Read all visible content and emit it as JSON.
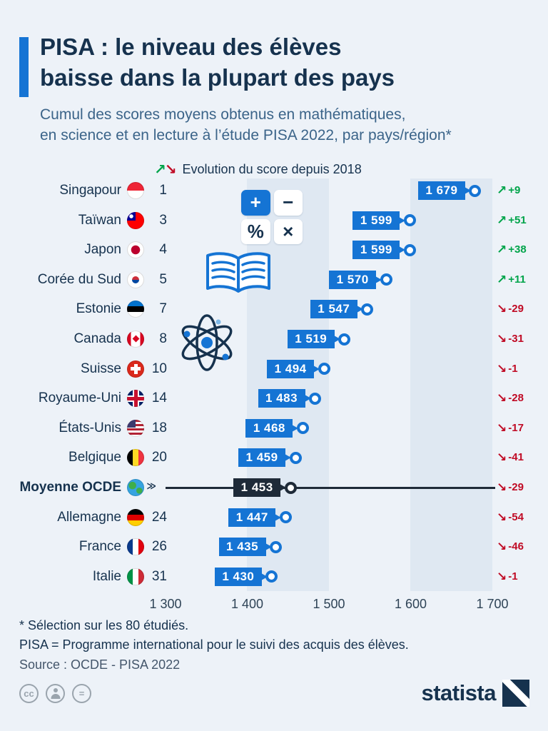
{
  "header": {
    "title_line1": "PISA : le niveau des élèves",
    "title_line2": "baisse dans la plupart des pays",
    "subtitle_line1": "Cumul des scores moyens obtenus en mathématiques,",
    "subtitle_line2": "en science et en lecture à l’étude PISA 2022, par pays/région*"
  },
  "legend": {
    "up_icon": "↗",
    "down_icon": "↘",
    "label": "Evolution du score depuis 2018"
  },
  "chart_data": {
    "type": "lollipop-bar",
    "title": "Cumul des scores moyens PISA 2022 (mathématiques + science + lecture)",
    "xlim": [
      1300,
      1700
    ],
    "x_ticks": [
      "1 300",
      "1 400",
      "1 500",
      "1 600",
      "1 700"
    ],
    "grid": "vertical-bands",
    "legend_position": "top",
    "rows": [
      {
        "country": "Singapour",
        "flag": "singapore",
        "rank": "1",
        "value": 1679,
        "label": "1 679",
        "change": "+9",
        "dir": "up",
        "emphasis": false
      },
      {
        "country": "Taïwan",
        "flag": "taiwan",
        "rank": "3",
        "value": 1599,
        "label": "1 599",
        "change": "+51",
        "dir": "up",
        "emphasis": false
      },
      {
        "country": "Japon",
        "flag": "japan",
        "rank": "4",
        "value": 1599,
        "label": "1 599",
        "change": "+38",
        "dir": "up",
        "emphasis": false
      },
      {
        "country": "Corée du Sud",
        "flag": "korea",
        "rank": "5",
        "value": 1570,
        "label": "1 570",
        "change": "+11",
        "dir": "up",
        "emphasis": false
      },
      {
        "country": "Estonie",
        "flag": "estonia",
        "rank": "7",
        "value": 1547,
        "label": "1 547",
        "change": "-29",
        "dir": "down",
        "emphasis": false
      },
      {
        "country": "Canada",
        "flag": "canada",
        "rank": "8",
        "value": 1519,
        "label": "1 519",
        "change": "-31",
        "dir": "down",
        "emphasis": false
      },
      {
        "country": "Suisse",
        "flag": "switzerland",
        "rank": "10",
        "value": 1494,
        "label": "1 494",
        "change": "-1",
        "dir": "down",
        "emphasis": false
      },
      {
        "country": "Royaume-Uni",
        "flag": "uk",
        "rank": "14",
        "value": 1483,
        "label": "1 483",
        "change": "-28",
        "dir": "down",
        "emphasis": false
      },
      {
        "country": "États-Unis",
        "flag": "usa",
        "rank": "18",
        "value": 1468,
        "label": "1 468",
        "change": "-17",
        "dir": "down",
        "emphasis": false
      },
      {
        "country": "Belgique",
        "flag": "belgium",
        "rank": "20",
        "value": 1459,
        "label": "1 459",
        "change": "-41",
        "dir": "down",
        "emphasis": false
      },
      {
        "country": "Moyenne OCDE",
        "flag": "globe",
        "rank": "",
        "value": 1453,
        "label": "1 453",
        "change": "-29",
        "dir": "down",
        "emphasis": true
      },
      {
        "country": "Allemagne",
        "flag": "germany",
        "rank": "24",
        "value": 1447,
        "label": "1 447",
        "change": "-54",
        "dir": "down",
        "emphasis": false
      },
      {
        "country": "France",
        "flag": "france",
        "rank": "26",
        "value": 1435,
        "label": "1 435",
        "change": "-46",
        "dir": "down",
        "emphasis": false
      },
      {
        "country": "Italie",
        "flag": "italy",
        "rank": "31",
        "value": 1430,
        "label": "1 430",
        "change": "-1",
        "dir": "down",
        "emphasis": false
      }
    ]
  },
  "decor": {
    "calculator_keys": [
      "+",
      "−",
      "%",
      "×"
    ]
  },
  "footnotes": {
    "note1": "* Sélection sur les 80 étudiés.",
    "note2": "PISA = Programme international pour le suivi des acquis des élèves.",
    "source": "Source : OCDE - PISA 2022"
  },
  "footer": {
    "cc_label": "cc",
    "nd_label": "=",
    "brand": "statista"
  },
  "colors": {
    "background": "#edf2f8",
    "accent_blue": "#1574d4",
    "navy": "#16324e",
    "dark_badge": "#1e2a38",
    "green": "#00a44a",
    "red": "#c00b25",
    "stripe": "#dfe8f2"
  }
}
